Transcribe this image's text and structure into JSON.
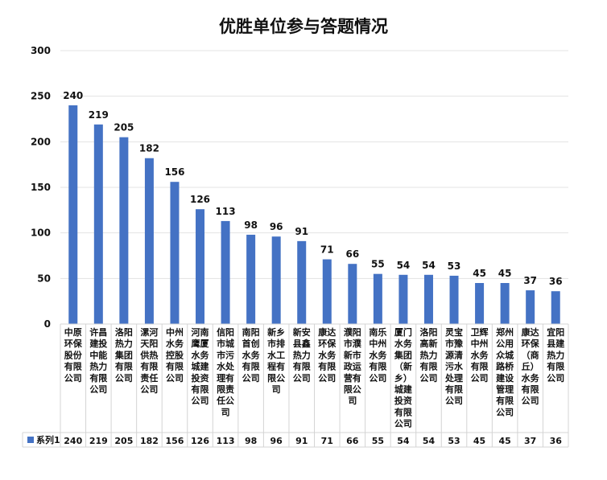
{
  "colors": {
    "bar": "#4472c4",
    "grid": "#e3e3e3",
    "text": "#111111"
  },
  "chart_data": {
    "type": "bar",
    "title": "优胜单位参与答题情况",
    "xlabel": "",
    "ylabel": "",
    "ylim": [
      0,
      300
    ],
    "yticks": [
      0,
      50,
      100,
      150,
      200,
      250,
      300
    ],
    "grid": true,
    "legend": "data-table",
    "data_table": true,
    "categories": [
      "中原环保股份有限公司",
      "许昌建投中能热力有限公司",
      "洛阳热力集团有限公司",
      "漯河天阳供热有限责任公司",
      "中州水务控股有限公司",
      "河南鹰厦水务城建投资有限公司",
      "信阳市城市污水处理有限责任公司",
      "南阳首创水务有限公司",
      "新乡市排水工程有限公司",
      "新安县鑫热力有限公司",
      "康达环保水务有限公司",
      "濮阳市濮新市政运营有限公司",
      "南乐中州水务有限公司",
      "厦门水务集团（新乡）城建投资有限公司",
      "洛阳高新热力有限公司",
      "灵宝市豫源清污水处理有限公司",
      "卫辉中州水务有限公司",
      "郑州公用众城路桥建设管理有限公司",
      "康达环保（商丘）水务有限公司",
      "宜阳县建热力有限公司"
    ],
    "series": [
      {
        "name": "系列1",
        "values": [
          240,
          219,
          205,
          182,
          156,
          126,
          113,
          98,
          96,
          91,
          71,
          66,
          55,
          54,
          54,
          53,
          45,
          45,
          37,
          36
        ]
      }
    ]
  }
}
